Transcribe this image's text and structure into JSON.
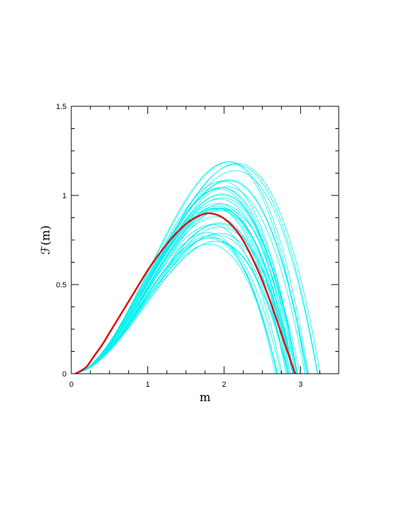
{
  "chart_data": {
    "type": "line",
    "xlabel": "m",
    "ylabel": "ℱ(m)",
    "xlim": [
      0,
      3.5
    ],
    "ylim": [
      0,
      1.5
    ],
    "x_ticks": [
      {
        "value": 0,
        "label": "0"
      },
      {
        "value": 1,
        "label": "1"
      },
      {
        "value": 2,
        "label": "2"
      },
      {
        "value": 3,
        "label": "3"
      }
    ],
    "y_ticks": [
      {
        "value": 0,
        "label": "0"
      },
      {
        "value": 0.5,
        "label": "0.5"
      },
      {
        "value": 1,
        "label": "1"
      },
      {
        "value": 1.5,
        "label": "1.5"
      }
    ],
    "x_minor_step": 0.25,
    "y_minor_step": 0.125,
    "grid": false,
    "legend": "none",
    "ensemble_color": "#00f0f0",
    "highlight_color": "#dd1111",
    "ensemble_curve_count": 40,
    "ensemble_peak_range": [
      0.69,
      1.19
    ],
    "ensemble_root_range": [
      2.6,
      3.27
    ],
    "highlight_series": {
      "x": [
        0.05,
        0.1,
        0.2,
        0.3,
        0.4,
        0.5,
        0.6,
        0.8,
        1.0,
        1.2,
        1.4,
        1.6,
        1.8,
        2.0,
        2.2,
        2.4,
        2.6,
        2.8,
        2.93
      ],
      "y": [
        0.0,
        0.01,
        0.04,
        0.1,
        0.16,
        0.23,
        0.3,
        0.44,
        0.58,
        0.7,
        0.8,
        0.87,
        0.9,
        0.87,
        0.78,
        0.62,
        0.41,
        0.16,
        0.0
      ]
    }
  }
}
